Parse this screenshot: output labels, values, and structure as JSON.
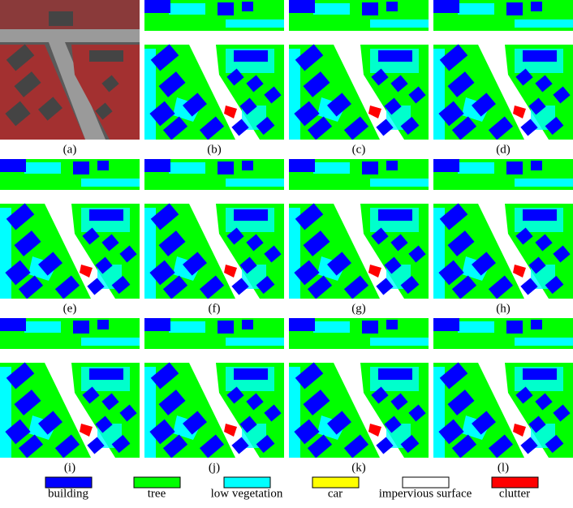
{
  "panels": [
    {
      "label": "(a)"
    },
    {
      "label": "(b)"
    },
    {
      "label": "(c)"
    },
    {
      "label": "(d)"
    },
    {
      "label": "(e)"
    },
    {
      "label": "(f)"
    },
    {
      "label": "(g)"
    },
    {
      "label": "(h)"
    },
    {
      "label": "(i)"
    },
    {
      "label": "(j)"
    },
    {
      "label": "(k)"
    },
    {
      "label": "(l)"
    }
  ],
  "legend": [
    {
      "name": "building",
      "color": "#0000ff"
    },
    {
      "name": "tree",
      "color": "#00ff00"
    },
    {
      "name": "low vegetation",
      "color": "#00ffff"
    },
    {
      "name": "car",
      "color": "#ffff00"
    },
    {
      "name": "impervious surface",
      "color": "#ffffff"
    },
    {
      "name": "clutter",
      "color": "#ff0000"
    }
  ]
}
